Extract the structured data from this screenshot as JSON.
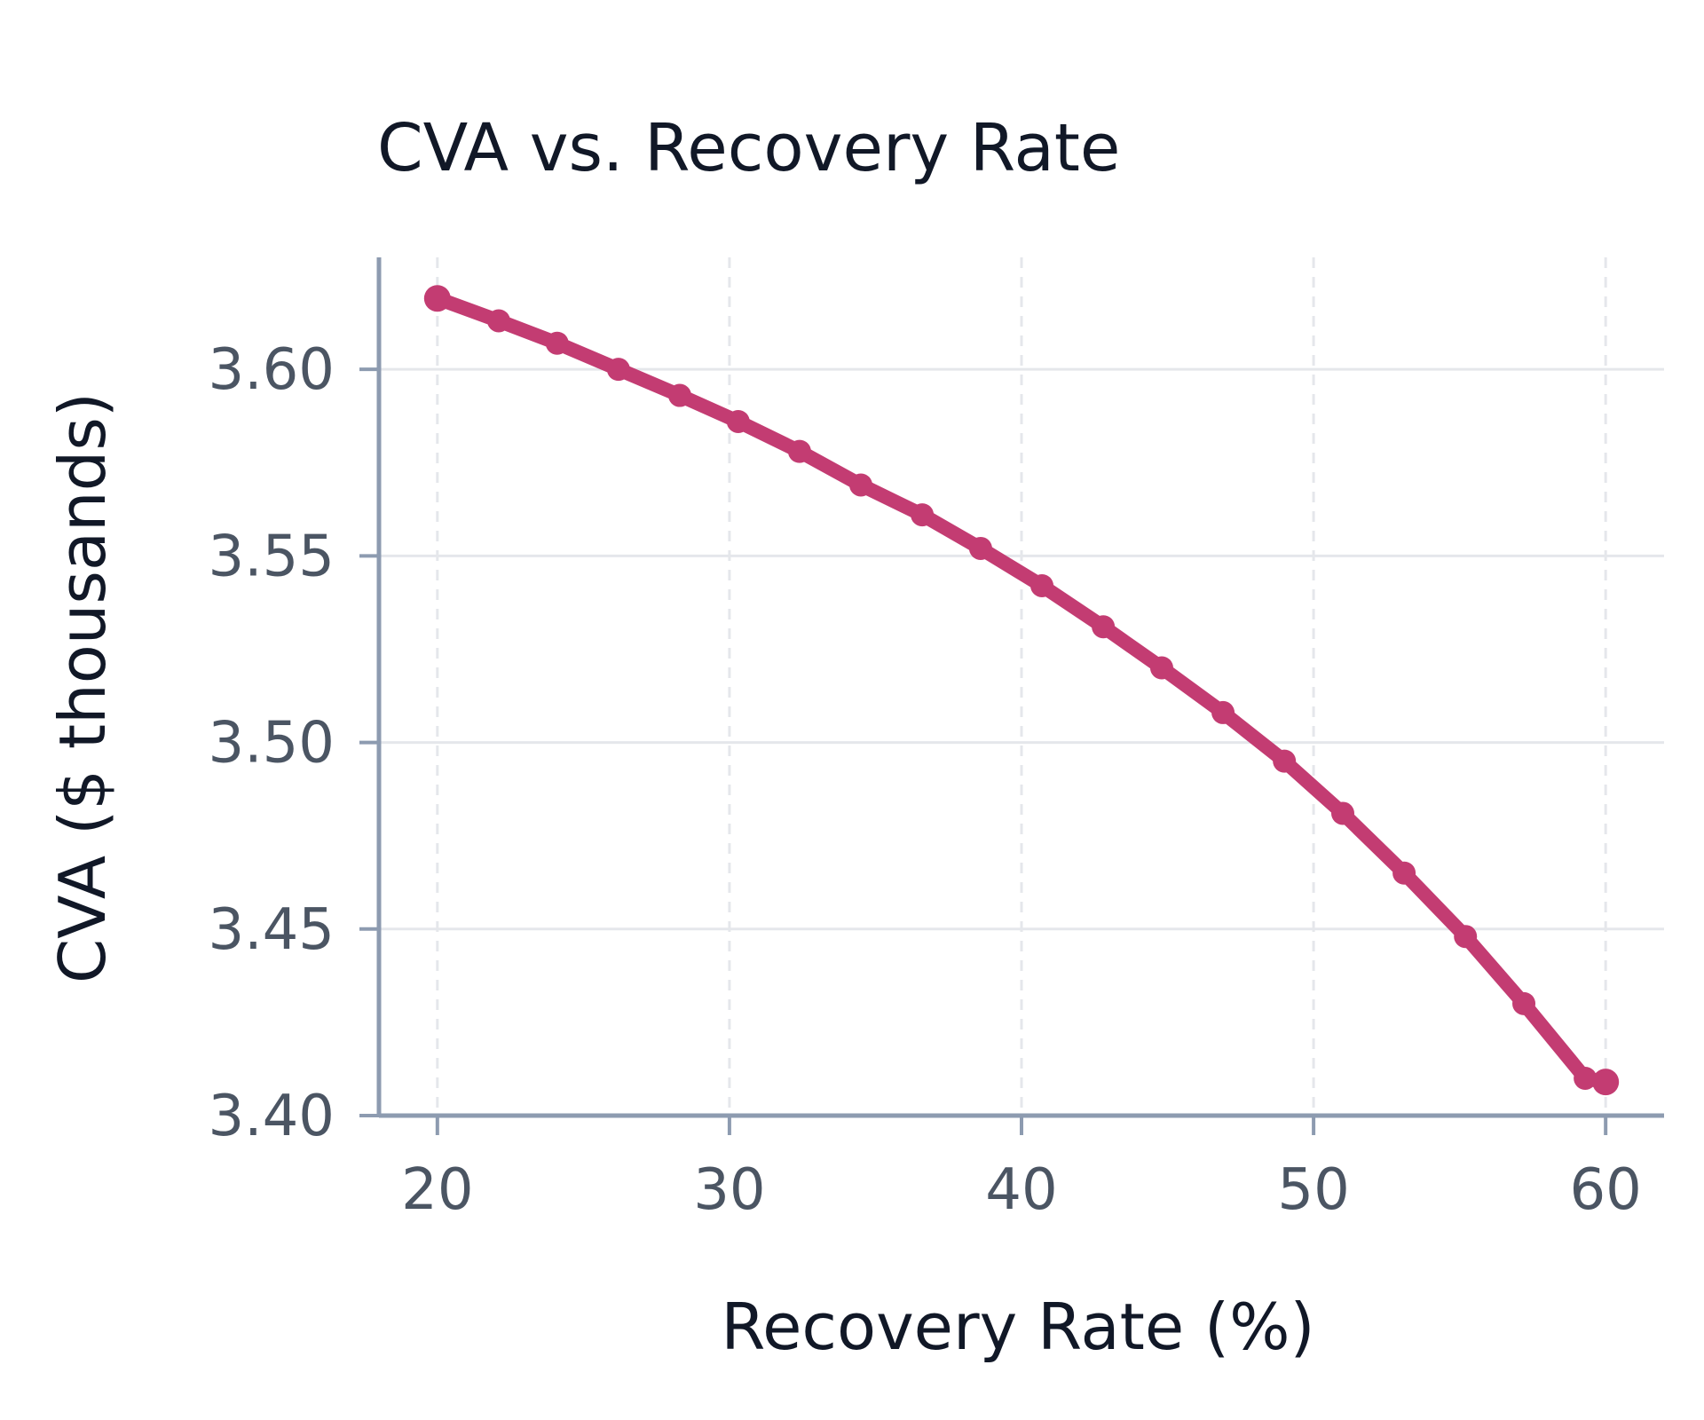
{
  "chart_data": {
    "type": "line",
    "title": "CVA vs. Recovery Rate",
    "xlabel": "Recovery Rate (%)",
    "ylabel": "CVA ($ thousands)",
    "xlim": [
      18,
      62
    ],
    "ylim": [
      3.4,
      3.63
    ],
    "x_ticks": [
      20,
      30,
      40,
      50,
      60
    ],
    "x_tick_labels": [
      "20",
      "30",
      "40",
      "50",
      "60"
    ],
    "y_ticks": [
      3.4,
      3.45,
      3.5,
      3.55,
      3.6
    ],
    "y_tick_labels": [
      "3.40",
      "3.45",
      "3.50",
      "3.55",
      "3.60"
    ],
    "grid": true,
    "legend": "none",
    "series": [
      {
        "color": "#c33c72",
        "x": [
          20.0,
          22.1,
          24.1,
          26.2,
          28.3,
          30.3,
          32.4,
          34.5,
          36.6,
          38.6,
          40.7,
          42.8,
          44.8,
          46.9,
          49.0,
          51.0,
          53.1,
          55.2,
          57.2,
          59.3,
          60.0
        ],
        "y": [
          3.619,
          3.613,
          3.607,
          3.6,
          3.593,
          3.586,
          3.578,
          3.569,
          3.561,
          3.552,
          3.542,
          3.531,
          3.52,
          3.508,
          3.495,
          3.481,
          3.465,
          3.448,
          3.43,
          3.41,
          3.409
        ]
      }
    ]
  }
}
